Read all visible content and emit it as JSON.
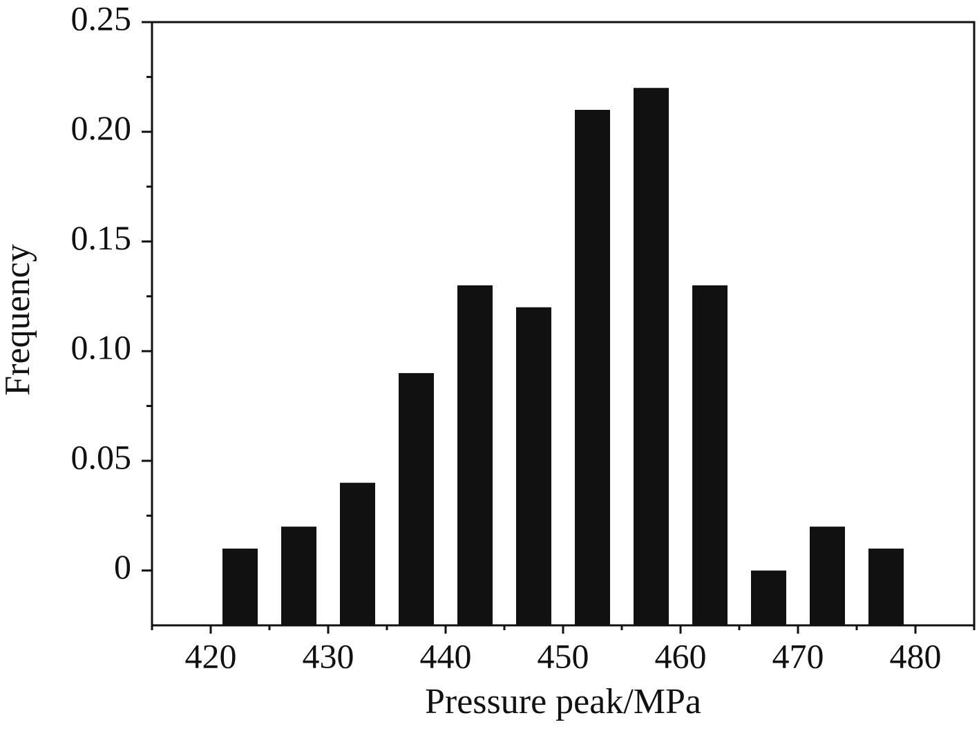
{
  "chart_data": {
    "type": "bar",
    "x_label": "Pressure peak/MPa",
    "y_label": "Frequency",
    "x": [
      422.5,
      427.5,
      432.5,
      437.5,
      442.5,
      447.5,
      452.5,
      457.5,
      462.5,
      467.5,
      472.5,
      477.5
    ],
    "values": [
      0.01,
      0.02,
      0.04,
      0.09,
      0.13,
      0.12,
      0.21,
      0.22,
      0.13,
      0,
      0.02,
      0.01
    ],
    "color": "#111111",
    "xlim": [
      415,
      485
    ],
    "xticks": [
      420,
      430,
      440,
      450,
      460,
      470,
      480
    ],
    "ylim": [
      -0.025,
      0.25
    ],
    "yticks": [
      0,
      0.05,
      {
        "value": 0.1,
        "label": "0.10"
      },
      0.15,
      {
        "value": 0.2,
        "label": "0.20"
      },
      0.25
    ],
    "grid": false
  }
}
